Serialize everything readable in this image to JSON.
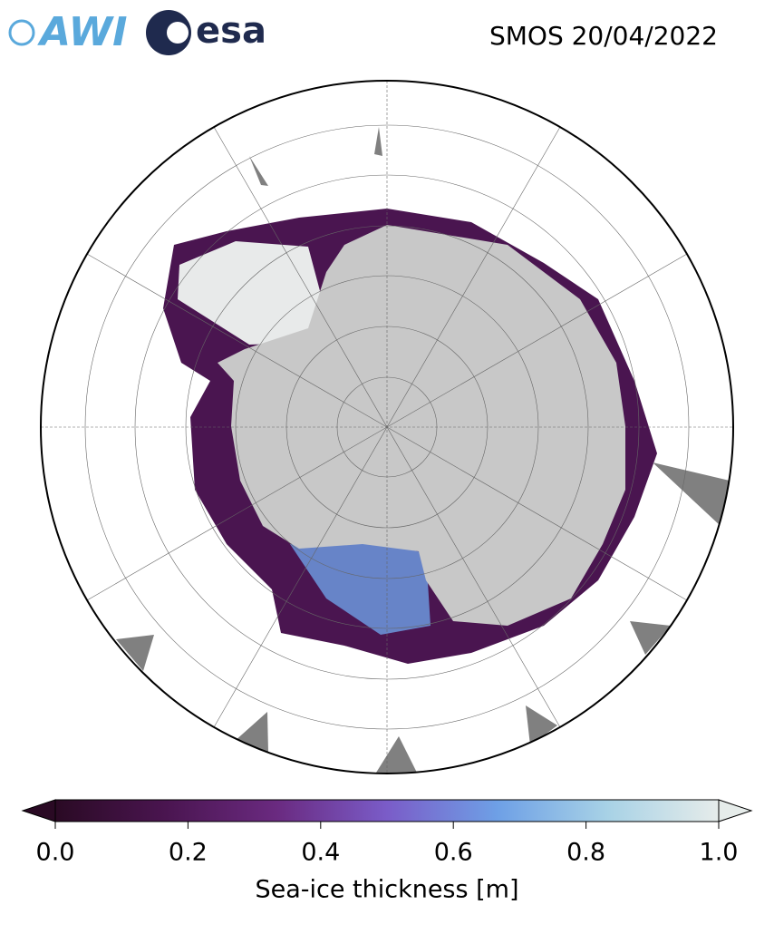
{
  "header": {
    "logos": [
      "AWI",
      "esa"
    ],
    "title": "SMOS 20/04/2022"
  },
  "colorbar": {
    "label": "Sea-ice thickness [m]",
    "lim": [
      0,
      1
    ],
    "ticks": [
      {
        "value": 0,
        "label": "0.0"
      },
      {
        "value": 0.2,
        "label": "0.2"
      },
      {
        "value": 0.4,
        "label": "0.4"
      },
      {
        "value": 0.6,
        "label": "0.6"
      },
      {
        "value": 0.8,
        "label": "0.8"
      },
      {
        "value": 1,
        "label": "1.0"
      }
    ],
    "colors": [
      "#2a0a24",
      "#4a1550",
      "#6a2a80",
      "#7a5cc8",
      "#6ea0e6",
      "#a8d2e6",
      "#e6ecea"
    ]
  }
}
